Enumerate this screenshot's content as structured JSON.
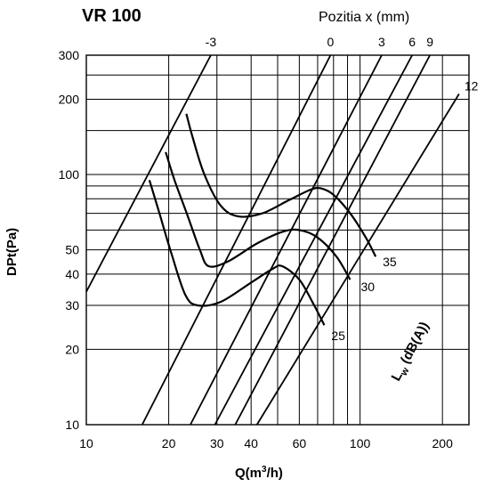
{
  "chart_data": {
    "type": "line",
    "title": "VR 100",
    "subtitle": "Pozitia x (mm)",
    "xlabel_text": "Q(m",
    "xlabel_sup": "3",
    "xlabel_tail": "/h)",
    "ylabel": "DPt(Pa)",
    "x_scale": "log",
    "y_scale": "log",
    "xlim": [
      10,
      250
    ],
    "ylim": [
      10,
      300
    ],
    "grid": true,
    "x_ticks": [
      {
        "value": 10,
        "label": "10"
      },
      {
        "value": 20,
        "label": "20"
      },
      {
        "value": 30,
        "label": "30"
      },
      {
        "value": 40,
        "label": "40"
      },
      {
        "value": 60,
        "label": "60"
      },
      {
        "value": 100,
        "label": "100"
      },
      {
        "value": 200,
        "label": "200"
      }
    ],
    "y_ticks": [
      {
        "value": 10,
        "label": "10"
      },
      {
        "value": 20,
        "label": "20"
      },
      {
        "value": 30,
        "label": "30"
      },
      {
        "value": 40,
        "label": "40"
      },
      {
        "value": 50,
        "label": "50"
      },
      {
        "value": 100,
        "label": "100"
      },
      {
        "value": 200,
        "label": "200"
      },
      {
        "value": 300,
        "label": "300"
      }
    ],
    "x_gridlines": [
      20,
      30,
      40,
      50,
      60,
      70,
      80,
      90,
      100,
      200
    ],
    "y_gridlines": [
      20,
      30,
      40,
      50,
      60,
      70,
      80,
      90,
      100,
      150,
      200,
      250
    ],
    "position_lines": [
      {
        "label": "-3",
        "x": [
          10,
          28.5
        ],
        "y": [
          34,
          300
        ]
      },
      {
        "label": "0",
        "x": [
          16,
          78
        ],
        "y": [
          10,
          300
        ]
      },
      {
        "label": "3",
        "x": [
          24,
          120
        ],
        "y": [
          10,
          300
        ]
      },
      {
        "label": "6",
        "x": [
          29.5,
          155
        ],
        "y": [
          10,
          300
        ]
      },
      {
        "label": "9",
        "x": [
          35,
          180
        ],
        "y": [
          10,
          300
        ]
      },
      {
        "label": "12",
        "x": [
          42,
          230
        ],
        "y": [
          10,
          210
        ]
      }
    ],
    "sound_curves": [
      {
        "label": "35",
        "points": [
          [
            23.2,
            175
          ],
          [
            24.5,
            140
          ],
          [
            27,
            100
          ],
          [
            31,
            75
          ],
          [
            36,
            68
          ],
          [
            44,
            70
          ],
          [
            55,
            79
          ],
          [
            66,
            87
          ],
          [
            72,
            88
          ],
          [
            80,
            83
          ],
          [
            92,
            70
          ],
          [
            105,
            56
          ],
          [
            114,
            47
          ]
        ]
      },
      {
        "label": "30",
        "points": [
          [
            19.5,
            123
          ],
          [
            21,
            95
          ],
          [
            23.5,
            68
          ],
          [
            26,
            50
          ],
          [
            28,
            43
          ],
          [
            33,
            45
          ],
          [
            42,
            53
          ],
          [
            52,
            59
          ],
          [
            60,
            60
          ],
          [
            70,
            56
          ],
          [
            82,
            47
          ],
          [
            92,
            38
          ]
        ]
      },
      {
        "label": "25",
        "points": [
          [
            17,
            95
          ],
          [
            18.5,
            70
          ],
          [
            20.5,
            48
          ],
          [
            23,
            33
          ],
          [
            25.5,
            30
          ],
          [
            31,
            31
          ],
          [
            40,
            37
          ],
          [
            48,
            42
          ],
          [
            52,
            43
          ],
          [
            60,
            38
          ],
          [
            68,
            30
          ],
          [
            74,
            25
          ]
        ]
      }
    ],
    "lw_label": {
      "base": "L",
      "sub": "w",
      "tail": " (dB(A))"
    }
  }
}
